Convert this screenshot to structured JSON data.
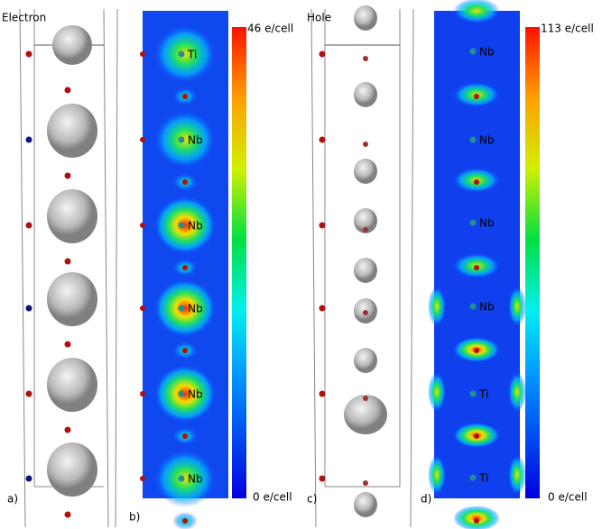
{
  "panels": [
    {
      "title": "Electron",
      "label": "a)"
    },
    {
      "label": "b)",
      "colorbar": {
        "max": "46 e/cell",
        "min": "0 e/cell"
      },
      "atoms": [
        "Ti",
        "Nb",
        "Nb",
        "Nb",
        "Nb",
        "Nb"
      ]
    },
    {
      "title": "Hole",
      "label": "c)"
    },
    {
      "label": "d)",
      "colorbar": {
        "max": "113 e/cell",
        "min": "0 e/cell"
      },
      "atoms": [
        "Nb",
        "Nb",
        "Nb",
        "Nb",
        "Ti",
        "Ti"
      ]
    }
  ]
}
